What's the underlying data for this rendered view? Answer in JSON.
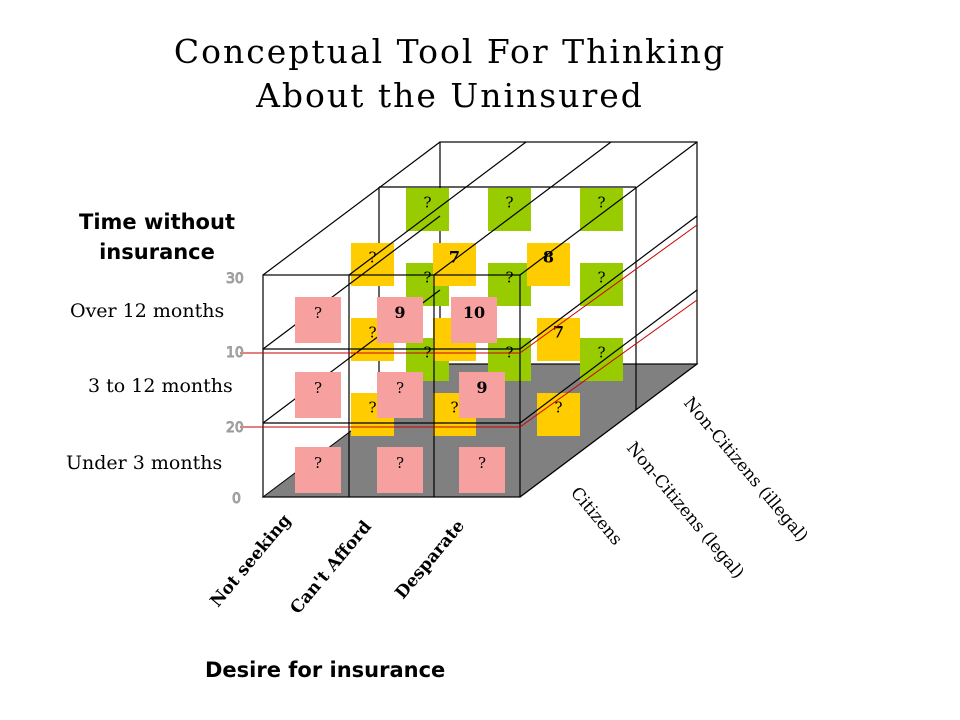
{
  "title": {
    "line1": "Conceptual Tool For Thinking",
    "line2": "About the Uninsured"
  },
  "time_axis": {
    "label_line1": "Time without",
    "label_line2": "insurance",
    "rows": [
      "Over 12 months",
      "3 to 12 months",
      "Under 3 months"
    ]
  },
  "desire_axis": {
    "label": "Desire for insurance",
    "categories": [
      "Not seeking",
      "Can't Afford",
      "Desparate"
    ]
  },
  "citizenship_axis": {
    "categories": [
      "Citizens",
      "Non-Citizens (legal)",
      "Non-Citizens (illegal)"
    ]
  },
  "colors": {
    "citizens": "#f7a0a0",
    "legal": "#ffcc00",
    "illegal": "#99cc00",
    "floor": "#808080"
  },
  "cells": [
    {
      "id": "i-2-0",
      "layer": "illegal",
      "text": "?"
    },
    {
      "id": "i-2-1",
      "layer": "illegal",
      "text": "?"
    },
    {
      "id": "i-2-2",
      "layer": "illegal",
      "text": "?"
    },
    {
      "id": "i-1-0",
      "layer": "illegal",
      "text": "?"
    },
    {
      "id": "i-1-1",
      "layer": "illegal",
      "text": "?"
    },
    {
      "id": "i-1-2",
      "layer": "illegal",
      "text": "?"
    },
    {
      "id": "i-0-2",
      "layer": "illegal",
      "text": "?"
    },
    {
      "id": "i-0-0",
      "layer": "illegal",
      "text": "?"
    },
    {
      "id": "i-0-1",
      "layer": "illegal",
      "text": "?"
    },
    {
      "id": "l-2-0",
      "layer": "legal",
      "text": "?"
    },
    {
      "id": "l-2-1",
      "layer": "legal",
      "text": "7"
    },
    {
      "id": "l-2-2",
      "layer": "legal",
      "text": "8"
    },
    {
      "id": "l-1-0",
      "layer": "legal",
      "text": "?"
    },
    {
      "id": "l-1-1",
      "layer": "legal",
      "text": "?"
    },
    {
      "id": "l-1-2",
      "layer": "legal",
      "text": "7"
    },
    {
      "id": "l-0-0",
      "layer": "legal",
      "text": "?"
    },
    {
      "id": "l-0-1",
      "layer": "legal",
      "text": "?"
    },
    {
      "id": "l-0-2",
      "layer": "legal",
      "text": "?"
    },
    {
      "id": "c-2-0",
      "layer": "citizens",
      "text": "?"
    },
    {
      "id": "c-2-1",
      "layer": "citizens",
      "text": "9"
    },
    {
      "id": "c-2-2",
      "layer": "citizens",
      "text": "10"
    },
    {
      "id": "c-1-0",
      "layer": "citizens",
      "text": "?"
    },
    {
      "id": "c-1-1",
      "layer": "citizens",
      "text": "?"
    },
    {
      "id": "c-1-2",
      "layer": "citizens",
      "text": "9"
    },
    {
      "id": "c-0-0",
      "layer": "citizens",
      "text": "?"
    },
    {
      "id": "c-0-1",
      "layer": "citizens",
      "text": "?"
    },
    {
      "id": "c-0-2",
      "layer": "citizens",
      "text": "?"
    }
  ]
}
